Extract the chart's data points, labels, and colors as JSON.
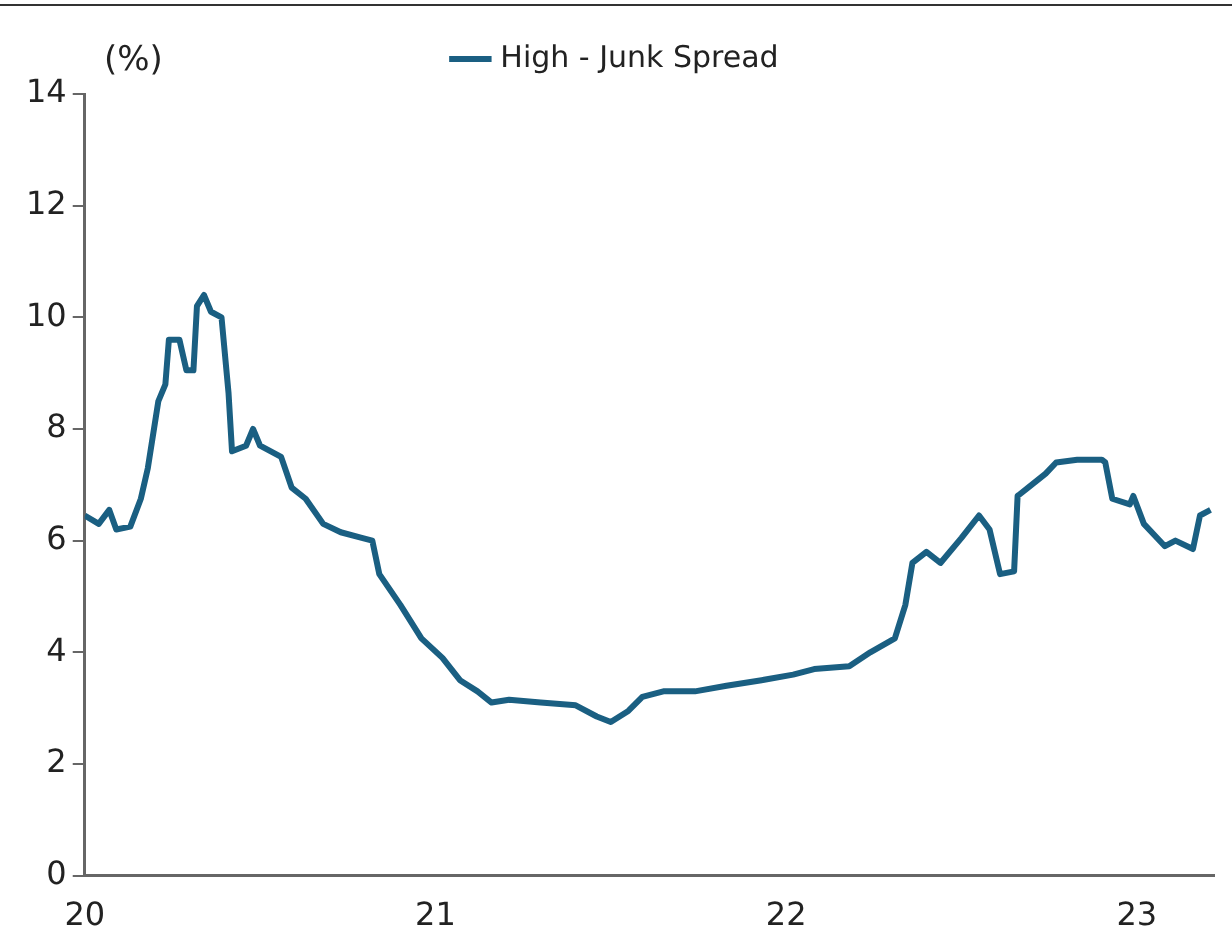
{
  "chart_data": {
    "type": "line",
    "ylabel": "(%)",
    "legend": "top",
    "grid": false,
    "marker": "none",
    "line_style": "solid",
    "xlim": [
      20,
      23.22
    ],
    "xticks": [
      20,
      21,
      22,
      23
    ],
    "ylim": [
      0,
      14
    ],
    "yticks": [
      0,
      2,
      4,
      6,
      8,
      10,
      12,
      14
    ],
    "series": [
      {
        "name": "High - Junk Spread",
        "color": "#1a5f82",
        "x": [
          20.0,
          20.04,
          20.07,
          20.09,
          20.13,
          20.16,
          20.18,
          20.21,
          20.23,
          20.24,
          20.27,
          20.29,
          20.31,
          20.32,
          20.34,
          20.36,
          20.39,
          20.41,
          20.42,
          20.46,
          20.48,
          20.5,
          20.56,
          20.59,
          20.63,
          20.68,
          20.73,
          20.79,
          20.82,
          20.84,
          20.9,
          20.96,
          21.02,
          21.07,
          21.12,
          21.16,
          21.21,
          21.3,
          21.4,
          21.46,
          21.5,
          21.55,
          21.59,
          21.65,
          21.74,
          21.83,
          21.93,
          22.02,
          22.08,
          22.18,
          22.24,
          22.31,
          22.34,
          22.36,
          22.4,
          22.44,
          22.5,
          22.55,
          22.58,
          22.61,
          22.65,
          22.66,
          22.69,
          22.74,
          22.77,
          22.83,
          22.9,
          22.91,
          22.93,
          22.98,
          22.99,
          23.02,
          23.08,
          23.11,
          23.16,
          23.18,
          23.21
        ],
        "values": [
          6.45,
          6.3,
          6.55,
          6.2,
          6.25,
          6.75,
          7.3,
          8.5,
          8.8,
          9.6,
          9.6,
          9.05,
          9.05,
          10.2,
          10.4,
          10.1,
          10.0,
          8.65,
          7.6,
          7.7,
          8.0,
          7.7,
          7.5,
          6.95,
          6.75,
          6.3,
          6.15,
          6.05,
          6.0,
          5.4,
          4.85,
          4.25,
          3.9,
          3.5,
          3.3,
          3.1,
          3.15,
          3.1,
          3.05,
          2.85,
          2.75,
          2.95,
          3.2,
          3.3,
          3.3,
          3.4,
          3.5,
          3.6,
          3.7,
          3.75,
          4.0,
          4.25,
          4.85,
          5.6,
          5.8,
          5.6,
          6.05,
          6.45,
          6.2,
          5.4,
          5.45,
          6.8,
          6.95,
          7.2,
          7.4,
          7.45,
          7.45,
          7.4,
          6.75,
          6.65,
          6.8,
          6.3,
          5.9,
          6.0,
          5.85,
          6.45,
          6.55
        ]
      }
    ]
  }
}
